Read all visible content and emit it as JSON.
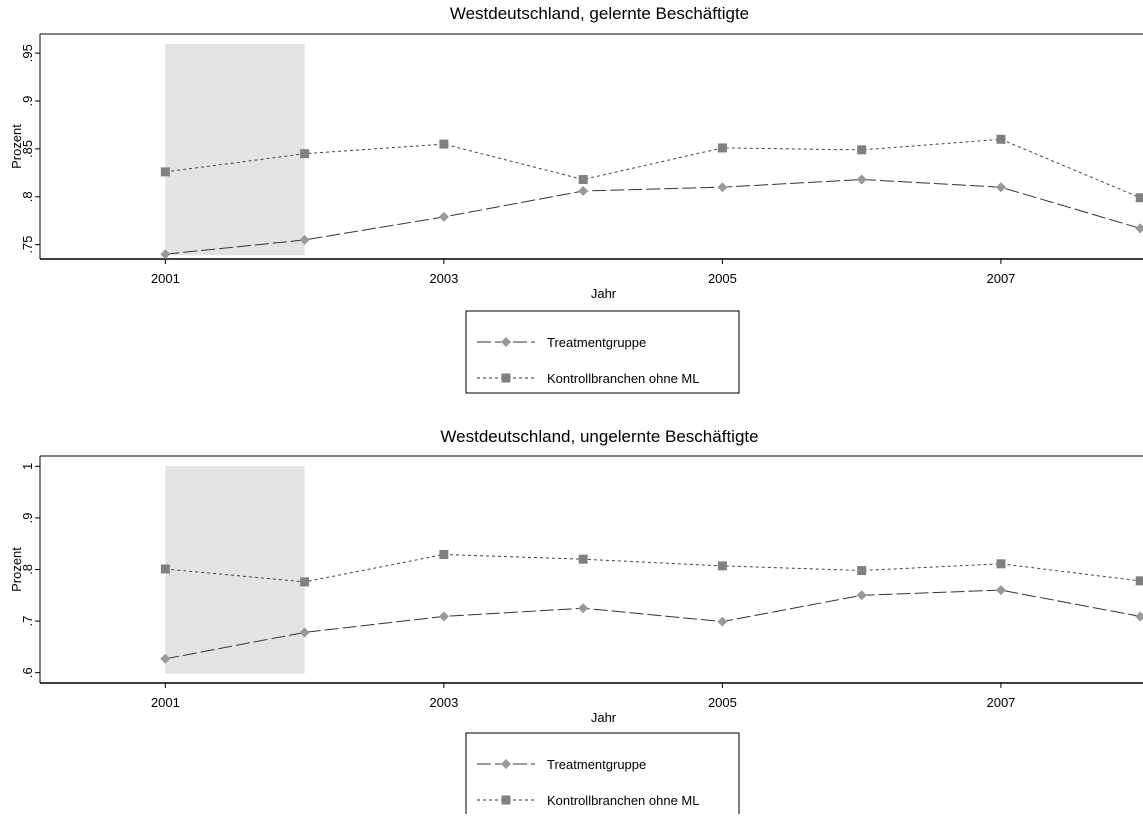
{
  "chart_data": [
    {
      "type": "line",
      "title": "Westdeutschland, gelernte Beschäftigte",
      "xlabel": "Jahr",
      "ylabel": "Prozent",
      "x": [
        2001,
        2002,
        2003,
        2004,
        2005,
        2006,
        2007,
        2008
      ],
      "x_tick_labels": [
        "2001",
        "2003",
        "2005",
        "2007"
      ],
      "x_tick_values": [
        2001,
        2003,
        2005,
        2007
      ],
      "y_tick_labels": [
        ".75",
        ".8",
        ".85",
        ".9",
        ".95"
      ],
      "y_tick_values": [
        0.75,
        0.8,
        0.85,
        0.9,
        0.95
      ],
      "ylim": [
        0.735,
        0.97
      ],
      "xlim": [
        2000.1,
        2008.02
      ],
      "shaded_region_x": [
        2001,
        2002
      ],
      "grid": false,
      "legend_position": "bottom-center",
      "series": [
        {
          "name": "Treatmentgruppe",
          "marker": "diamond",
          "line": "long-dash",
          "color": "#999999",
          "values": [
            0.74,
            0.755,
            0.779,
            0.806,
            0.81,
            0.818,
            0.81,
            0.767
          ]
        },
        {
          "name": "Kontrollbranchen ohne ML",
          "marker": "square",
          "line": "short-dash",
          "color": "#808080",
          "values": [
            0.826,
            0.845,
            0.855,
            0.818,
            0.851,
            0.849,
            0.86,
            0.799
          ]
        }
      ]
    },
    {
      "type": "line",
      "title": "Westdeutschland, ungelernte Beschäftigte",
      "xlabel": "Jahr",
      "ylabel": "Prozent",
      "x": [
        2001,
        2002,
        2003,
        2004,
        2005,
        2006,
        2007,
        2008
      ],
      "x_tick_labels": [
        "2001",
        "2003",
        "2005",
        "2007"
      ],
      "x_tick_values": [
        2001,
        2003,
        2005,
        2007
      ],
      "y_tick_labels": [
        ".6",
        ".7",
        ".8",
        ".9",
        "1"
      ],
      "y_tick_values": [
        0.6,
        0.7,
        0.8,
        0.9,
        1.0
      ],
      "ylim": [
        0.58,
        1.02
      ],
      "xlim": [
        2000.1,
        2008.02
      ],
      "shaded_region_x": [
        2001,
        2002
      ],
      "grid": false,
      "legend_position": "bottom-center",
      "series": [
        {
          "name": "Treatmentgruppe",
          "marker": "diamond",
          "line": "long-dash",
          "color": "#999999",
          "values": [
            0.627,
            0.678,
            0.709,
            0.725,
            0.699,
            0.75,
            0.76,
            0.709
          ]
        },
        {
          "name": "Kontrollbranchen ohne ML",
          "marker": "square",
          "line": "short-dash",
          "color": "#808080",
          "values": [
            0.801,
            0.776,
            0.829,
            0.82,
            0.807,
            0.798,
            0.811,
            0.778
          ]
        }
      ]
    }
  ]
}
